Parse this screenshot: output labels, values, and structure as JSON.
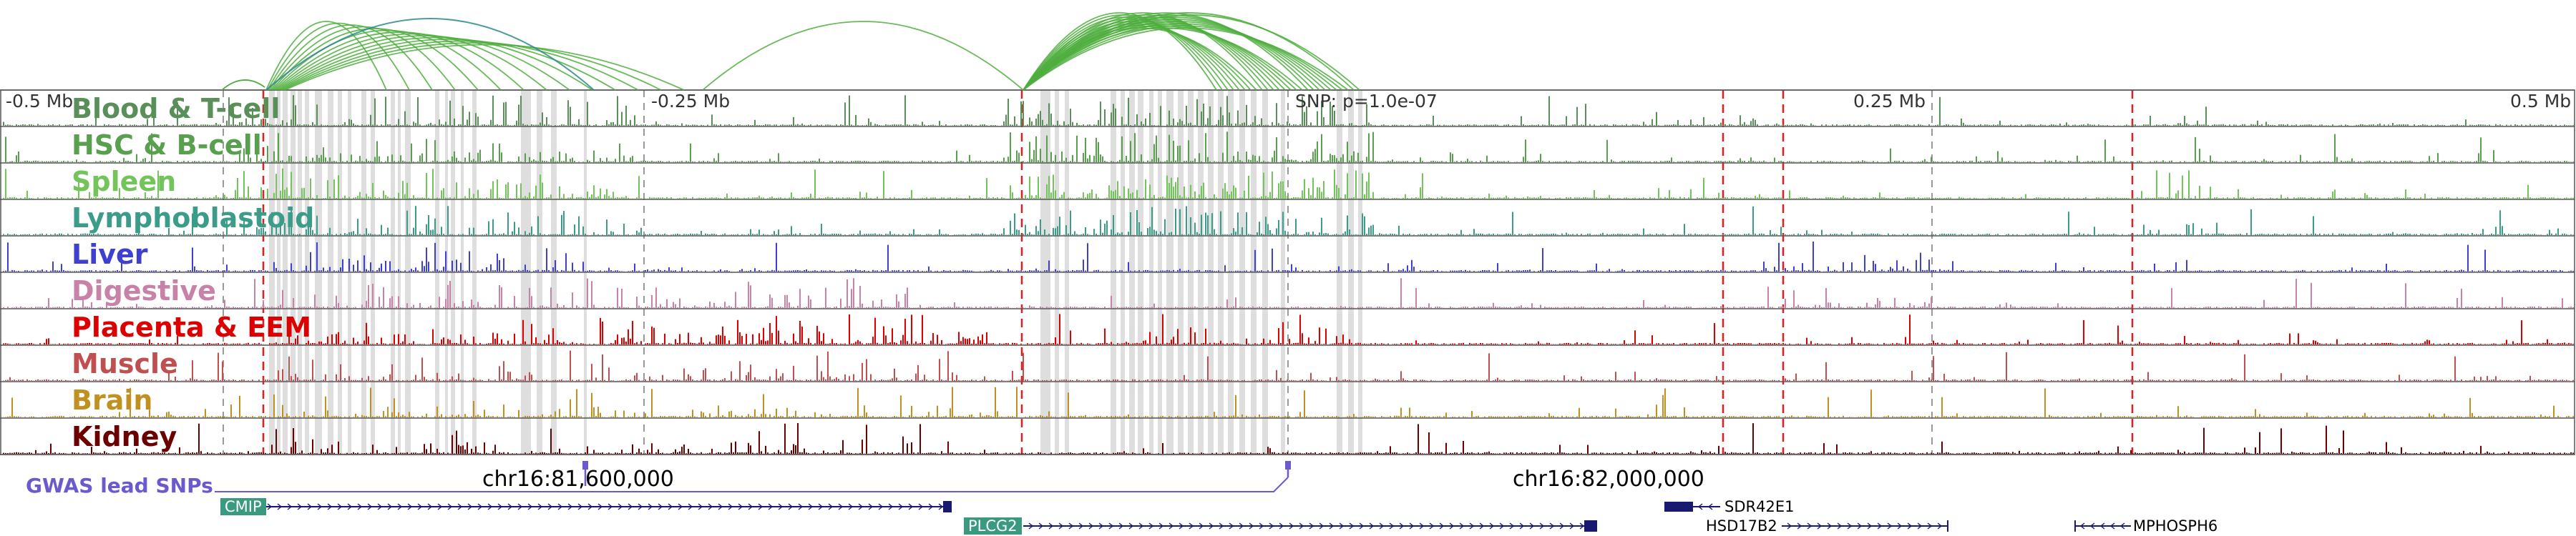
{
  "colors": {
    "loop": "#4fae3e",
    "loop_alt": "#2e8b8b",
    "highlight": "#d3d3d3",
    "red_marker": "#e02020",
    "gray_marker": "#999999",
    "gwas": "#6a5acd",
    "gene": "#191970",
    "gene_highlight": "#3a9a80"
  },
  "tracks": [
    {
      "name": "Blood & T-cell",
      "color": "#5a8f5a",
      "profile": "immune"
    },
    {
      "name": "HSC & B-cell",
      "color": "#58a04e",
      "profile": "immune"
    },
    {
      "name": "Spleen",
      "color": "#74c45c",
      "profile": "immune"
    },
    {
      "name": "Lymphoblastoid",
      "color": "#3c9c8a",
      "profile": "immune"
    },
    {
      "name": "Liver",
      "color": "#4040d0",
      "profile": "liver"
    },
    {
      "name": "Digestive",
      "color": "#c882a8",
      "profile": "digestive"
    },
    {
      "name": "Placenta & EEM",
      "color": "#dd0000",
      "profile": "placenta"
    },
    {
      "name": "Muscle",
      "color": "#c05050",
      "profile": "muscle"
    },
    {
      "name": "Brain",
      "color": "#c09020",
      "profile": "brain"
    },
    {
      "name": "Kidney",
      "color": "#6b0000",
      "profile": "kidney"
    }
  ],
  "axis": {
    "ticks": [
      {
        "label": "-0.5 Mb"
      },
      {
        "label": "-0.25 Mb"
      },
      {
        "label": "0.25 Mb"
      },
      {
        "label": "0.5 Mb"
      }
    ],
    "snp_label": "SNP: p=1.0e-07"
  },
  "coordinates": [
    {
      "label": "chr16:81,600,000"
    },
    {
      "label": "chr16:82,000,000"
    }
  ],
  "gwas": {
    "label": "GWAS lead SNPs"
  },
  "genes": [
    {
      "name": "CMIP",
      "highlight": true
    },
    {
      "name": "PLCG2",
      "highlight": true
    },
    {
      "name": "SDR42E1",
      "highlight": false
    },
    {
      "name": "HSD17B2",
      "highlight": false
    },
    {
      "name": "MPHOSPH6",
      "highlight": false
    }
  ]
}
